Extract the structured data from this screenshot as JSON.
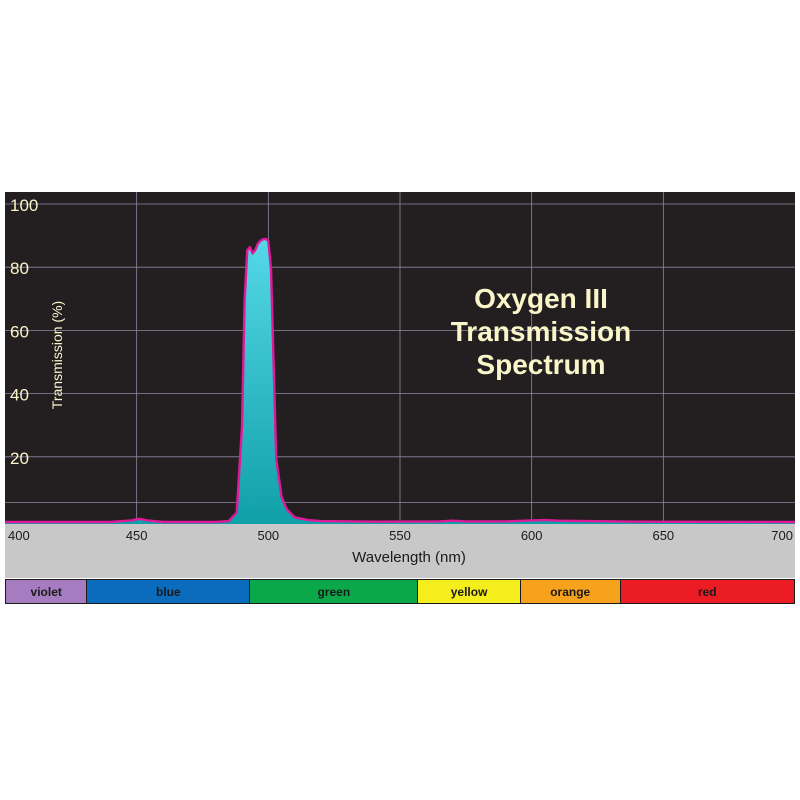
{
  "chart_data": {
    "type": "area",
    "title": "Oxygen III Transmission Spectrum",
    "title_lines": [
      "Oxygen III",
      "Transmission",
      "Spectrum"
    ],
    "xlabel": "Wavelength (nm)",
    "ylabel": "Transmission (%)",
    "xlim": [
      400,
      700
    ],
    "ylim": [
      0,
      100
    ],
    "x_ticks": [
      400,
      450,
      500,
      550,
      600,
      650,
      700
    ],
    "y_ticks": [
      20,
      40,
      60,
      80,
      100
    ],
    "grid": true,
    "series": [
      {
        "points": [
          [
            400,
            0
          ],
          [
            440,
            0
          ],
          [
            448,
            0.5
          ],
          [
            451,
            1
          ],
          [
            454,
            0.5
          ],
          [
            460,
            0
          ],
          [
            480,
            0
          ],
          [
            485,
            0.3
          ],
          [
            488,
            3
          ],
          [
            490,
            30
          ],
          [
            491,
            70
          ],
          [
            492,
            86
          ],
          [
            493,
            87
          ],
          [
            494,
            85
          ],
          [
            495,
            86
          ],
          [
            496,
            88
          ],
          [
            497,
            89
          ],
          [
            498,
            89.5
          ],
          [
            499,
            89.6
          ],
          [
            500,
            89
          ],
          [
            501,
            80
          ],
          [
            502,
            50
          ],
          [
            503,
            20
          ],
          [
            505,
            8
          ],
          [
            507,
            4
          ],
          [
            510,
            1.5
          ],
          [
            515,
            0.6
          ],
          [
            520,
            0.3
          ],
          [
            540,
            0.1
          ],
          [
            565,
            0.2
          ],
          [
            570,
            0.4
          ],
          [
            575,
            0.2
          ],
          [
            590,
            0.2
          ],
          [
            600,
            0.5
          ],
          [
            605,
            0.6
          ],
          [
            610,
            0.4
          ],
          [
            640,
            0.1
          ],
          [
            700,
            0
          ]
        ]
      }
    ],
    "colors": {
      "plot_background": "#231f20",
      "axis_band": "#c8c8c8",
      "grid": "#8a8aa0",
      "curve": "#e0199a",
      "fill_top": "#55d8e8",
      "fill_bottom": "#10a0a8",
      "title": "#fbf6c9",
      "labels": "#fbf6c9"
    },
    "color_bands": [
      {
        "label": "violet",
        "start": 400,
        "end": 431,
        "color": "#a57cc0"
      },
      {
        "label": "blue",
        "start": 431,
        "end": 493,
        "color": "#0b6cbd"
      },
      {
        "label": "green",
        "start": 493,
        "end": 557,
        "color": "#0ba84a"
      },
      {
        "label": "yellow",
        "start": 557,
        "end": 596,
        "color": "#f5ee1c"
      },
      {
        "label": "orange",
        "start": 596,
        "end": 634,
        "color": "#f7a21c"
      },
      {
        "label": "red",
        "start": 634,
        "end": 700,
        "color": "#ec1c24"
      }
    ]
  }
}
